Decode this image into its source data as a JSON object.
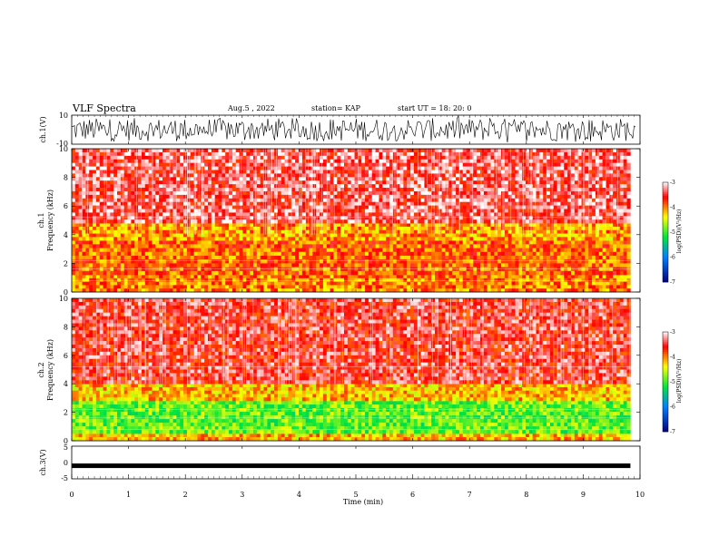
{
  "header": {
    "title": "VLF Spectra",
    "date": "Aug.5 , 2022",
    "station": "station= KAP",
    "start_ut": "start  UT =   18: 20: 0"
  },
  "chart_data": [
    {
      "type": "line",
      "panel": "ch1-waveform",
      "ylabel": "ch.1(V)",
      "ylim": [
        -10,
        10
      ],
      "yticks": [
        "10",
        "-10"
      ],
      "xlim": [
        0,
        10
      ],
      "color": "#000000",
      "description_values": "noise waveform spanning roughly -10 to 10 V over full window"
    },
    {
      "type": "heatmap",
      "panel": "ch1-spectrogram",
      "ylabel": "ch.1\nFrequency (kHz)",
      "ylabel_line1": "ch.1",
      "ylabel_line2": "Frequency (kHz)",
      "ylim": [
        0,
        10
      ],
      "yticks": [
        "0",
        "2",
        "4",
        "6",
        "8",
        "10"
      ],
      "xlim": [
        0,
        9.83
      ],
      "bands": [
        {
          "from": 0,
          "to": 1.2,
          "level": -4.0
        },
        {
          "from": 1.2,
          "to": 3.6,
          "level": -3.9
        },
        {
          "from": 3.6,
          "to": 4.8,
          "level": -4.1
        },
        {
          "from": 4.8,
          "to": 10,
          "level": -3.4
        }
      ],
      "colorbar": {
        "label": "log(PSD)(V²/Hz)",
        "ticks": [
          "-3",
          "-4",
          "-5",
          "-6",
          "-7"
        ],
        "range": [
          -7,
          -3
        ]
      }
    },
    {
      "type": "heatmap",
      "panel": "ch2-spectrogram",
      "ylabel_line1": "ch.2",
      "ylabel_line2": "Frequency (kHz)",
      "ylim": [
        0,
        10
      ],
      "yticks": [
        "0",
        "2",
        "4",
        "6",
        "8",
        "10"
      ],
      "xlim": [
        0,
        9.83
      ],
      "bands": [
        {
          "from": 0,
          "to": 0.5,
          "level": -4.2
        },
        {
          "from": 0.5,
          "to": 2.8,
          "level": -4.9
        },
        {
          "from": 2.8,
          "to": 4.0,
          "level": -4.2
        },
        {
          "from": 4.0,
          "to": 10,
          "level": -3.5
        }
      ],
      "colorbar": {
        "label": "log(PSD)(V²/Hz)",
        "ticks": [
          "-3",
          "-4",
          "-5",
          "-6",
          "-7"
        ],
        "range": [
          -7,
          -3
        ]
      }
    },
    {
      "type": "line",
      "panel": "ch3-waveform",
      "ylabel": "ch.3(V)",
      "ylim": [
        -5,
        5
      ],
      "yticks": [
        "5",
        "0",
        "-5"
      ],
      "xlim": [
        0,
        10
      ],
      "level": -1,
      "color": "#000000"
    }
  ],
  "xaxis": {
    "label": "Time (min)",
    "ticks": [
      "0",
      "1",
      "2",
      "3",
      "4",
      "5",
      "6",
      "7",
      "8",
      "9",
      "10"
    ],
    "range": [
      0,
      10
    ]
  },
  "colors": {
    "high": "#ff0000",
    "mid_high": "#ffff00",
    "mid": "#00ff00",
    "low": "#00c0ff",
    "lowest": "#0000a0"
  }
}
